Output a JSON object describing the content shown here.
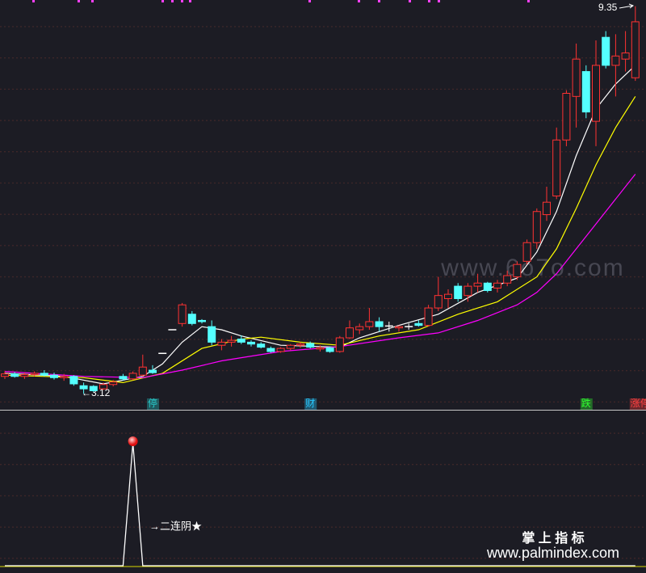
{
  "chart_data": [
    {
      "type": "candlestick",
      "up_color": "#ff3232",
      "down_color": "#54ffff",
      "flat_color": "#ffffff",
      "ylim": [
        2.89,
        9.45
      ],
      "open": [
        3.4,
        3.44,
        3.4,
        3.43,
        3.45,
        3.42,
        3.38,
        3.4,
        3.25,
        3.24,
        3.2,
        3.27,
        3.4,
        3.36,
        3.42,
        3.5,
        3.77,
        4.15,
        4.25,
        4.4,
        4.3,
        4.2,
        3.9,
        3.95,
        4.0,
        3.95,
        3.92,
        3.85,
        3.8,
        3.85,
        3.9,
        3.93,
        3.84,
        3.86,
        3.8,
        4.02,
        4.15,
        4.2,
        4.28,
        4.21,
        4.18,
        4.2,
        4.25,
        4.22,
        4.5,
        4.65,
        4.85,
        4.7,
        4.85,
        4.9,
        4.82,
        4.9,
        5.0,
        5.25,
        5.55,
        6.0,
        6.3,
        7.2,
        7.9,
        8.3,
        7.5,
        8.85,
        8.4,
        8.5,
        8.2
      ],
      "high": [
        3.48,
        3.47,
        3.46,
        3.48,
        3.5,
        3.46,
        3.44,
        3.42,
        3.3,
        3.26,
        3.3,
        3.34,
        3.44,
        3.48,
        3.75,
        3.58,
        3.77,
        4.15,
        4.58,
        4.45,
        4.32,
        4.3,
        4.0,
        4.05,
        4.06,
        3.98,
        3.95,
        3.88,
        3.87,
        3.92,
        3.95,
        3.96,
        3.9,
        3.88,
        4.05,
        4.3,
        4.25,
        4.5,
        4.35,
        4.28,
        4.22,
        4.25,
        4.3,
        4.55,
        5.0,
        4.8,
        4.9,
        4.9,
        5.05,
        4.92,
        4.95,
        5.1,
        5.25,
        5.6,
        6.1,
        6.45,
        7.4,
        8.0,
        8.75,
        8.4,
        8.8,
        8.95,
        8.9,
        8.95,
        9.35
      ],
      "low": [
        3.36,
        3.38,
        3.36,
        3.4,
        3.4,
        3.35,
        3.33,
        3.25,
        3.12,
        3.15,
        3.18,
        3.24,
        3.33,
        3.34,
        3.4,
        3.44,
        3.77,
        4.15,
        4.2,
        4.22,
        4.25,
        3.9,
        3.82,
        3.88,
        3.92,
        3.88,
        3.85,
        3.78,
        3.78,
        3.82,
        3.86,
        3.85,
        3.8,
        3.78,
        3.78,
        4.0,
        4.08,
        4.15,
        4.12,
        4.12,
        4.12,
        4.15,
        4.2,
        4.2,
        4.45,
        4.5,
        4.6,
        4.6,
        4.75,
        4.75,
        4.75,
        4.85,
        4.95,
        5.2,
        5.45,
        5.9,
        6.25,
        7.1,
        7.4,
        7.55,
        7.1,
        8.35,
        7.9,
        8.3,
        8.15
      ],
      "close": [
        3.44,
        3.4,
        3.43,
        3.45,
        3.42,
        3.38,
        3.4,
        3.28,
        3.2,
        3.17,
        3.27,
        3.31,
        3.36,
        3.45,
        3.55,
        3.46,
        3.77,
        4.15,
        4.55,
        4.25,
        4.28,
        3.95,
        3.95,
        3.98,
        3.95,
        3.92,
        3.87,
        3.8,
        3.85,
        3.9,
        3.92,
        3.87,
        3.86,
        3.8,
        4.02,
        4.18,
        4.2,
        4.28,
        4.2,
        4.21,
        4.2,
        4.2,
        4.22,
        4.5,
        4.7,
        4.72,
        4.65,
        4.85,
        4.9,
        4.78,
        4.9,
        5.02,
        5.2,
        5.55,
        6.05,
        6.2,
        7.2,
        7.95,
        8.5,
        7.65,
        8.4,
        8.4,
        8.55,
        8.6,
        9.1
      ],
      "series": [
        {
          "color": "#ffffff",
          "x": [
            0,
            6,
            10,
            14,
            16,
            18,
            20,
            22,
            24,
            28,
            32,
            34,
            36,
            40,
            44,
            48,
            52,
            54,
            56,
            58,
            60,
            62,
            64
          ],
          "values": [
            3.45,
            3.4,
            3.28,
            3.4,
            3.6,
            3.95,
            4.2,
            4.15,
            4.05,
            3.9,
            3.88,
            3.87,
            4.02,
            4.22,
            4.4,
            4.75,
            4.98,
            5.4,
            6.05,
            6.95,
            7.7,
            8.1,
            8.4
          ]
        },
        {
          "color": "#ffff00",
          "x": [
            0,
            8,
            12,
            16,
            20,
            24,
            26,
            30,
            34,
            38,
            42,
            46,
            50,
            54,
            56,
            58,
            60,
            62,
            64
          ],
          "values": [
            3.42,
            3.38,
            3.3,
            3.45,
            3.85,
            4.0,
            4.03,
            3.95,
            3.9,
            4.05,
            4.15,
            4.4,
            4.6,
            5.0,
            5.45,
            6.1,
            6.8,
            7.4,
            7.9
          ]
        },
        {
          "color": "#ff00ff",
          "x": [
            0,
            8,
            14,
            18,
            22,
            28,
            34,
            40,
            44,
            48,
            52,
            54,
            56,
            58,
            60,
            62,
            64
          ],
          "values": [
            3.48,
            3.4,
            3.38,
            3.5,
            3.65,
            3.8,
            3.88,
            4.02,
            4.1,
            4.3,
            4.55,
            4.75,
            5.05,
            5.45,
            5.85,
            6.25,
            6.65
          ]
        }
      ],
      "high_label": "9.35",
      "low_label": "←3.12",
      "markers": [
        {
          "x": 15,
          "label": "停",
          "color": "#28c8c8"
        },
        {
          "x": 31,
          "label": "财",
          "color": "#28c8ff"
        },
        {
          "x": 59,
          "label": "跌",
          "color": "#30ff30"
        },
        {
          "x": 64,
          "label": "涨停",
          "color": "#ff4040"
        }
      ],
      "watermark": "www.6o7o.com"
    },
    {
      "type": "line",
      "color": "#ffffff",
      "dot_color": "#ff2020",
      "ylim": [
        0,
        1.25
      ],
      "values": [
        0,
        0,
        0,
        0,
        0,
        0,
        0,
        0,
        0,
        0,
        0,
        0,
        0,
        1,
        0,
        0,
        0,
        0,
        0,
        0,
        0,
        0,
        0,
        0,
        0,
        0,
        0,
        0,
        0,
        0,
        0,
        0,
        0,
        0,
        0,
        0,
        0,
        0,
        0,
        0,
        0,
        0,
        0,
        0,
        0,
        0,
        0,
        0,
        0,
        0,
        0,
        0,
        0,
        0,
        0,
        0,
        0,
        0,
        0,
        0,
        0,
        0,
        0,
        0,
        0
      ],
      "annotation": "→二连阴★",
      "brand": "掌 上 指 标",
      "site": "www.palmindex.com"
    }
  ]
}
